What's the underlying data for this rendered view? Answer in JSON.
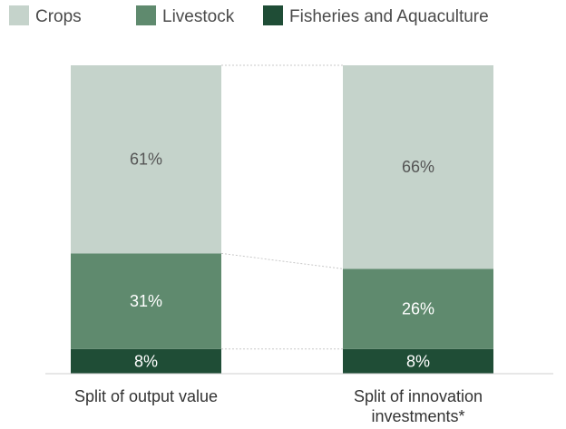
{
  "chart_data": {
    "type": "bar",
    "stacked": true,
    "categories": [
      "Split of output value",
      "Split of innovation investments*"
    ],
    "category_lines": [
      [
        "Split of output value"
      ],
      [
        "Split of innovation",
        "investments*"
      ]
    ],
    "series": [
      {
        "name": "Fisheries and Aquaculture",
        "values": [
          8,
          8
        ],
        "labels": [
          "8%",
          "8%"
        ],
        "color": "#1f4d36",
        "label_color": "#ffffff"
      },
      {
        "name": "Livestock",
        "values": [
          31,
          26
        ],
        "labels": [
          "31%",
          "26%"
        ],
        "color": "#5f8a6e",
        "label_color": "#ffffff"
      },
      {
        "name": "Crops",
        "values": [
          61,
          66
        ],
        "labels": [
          "61%",
          "66%"
        ],
        "color": "#c5d3cb",
        "label_color": "#555555"
      }
    ],
    "legend_order": [
      "Crops",
      "Livestock",
      "Fisheries and Aquaculture"
    ],
    "ylim": [
      0,
      100
    ],
    "legend_position": "top",
    "connector_lines": true,
    "grid": false
  }
}
